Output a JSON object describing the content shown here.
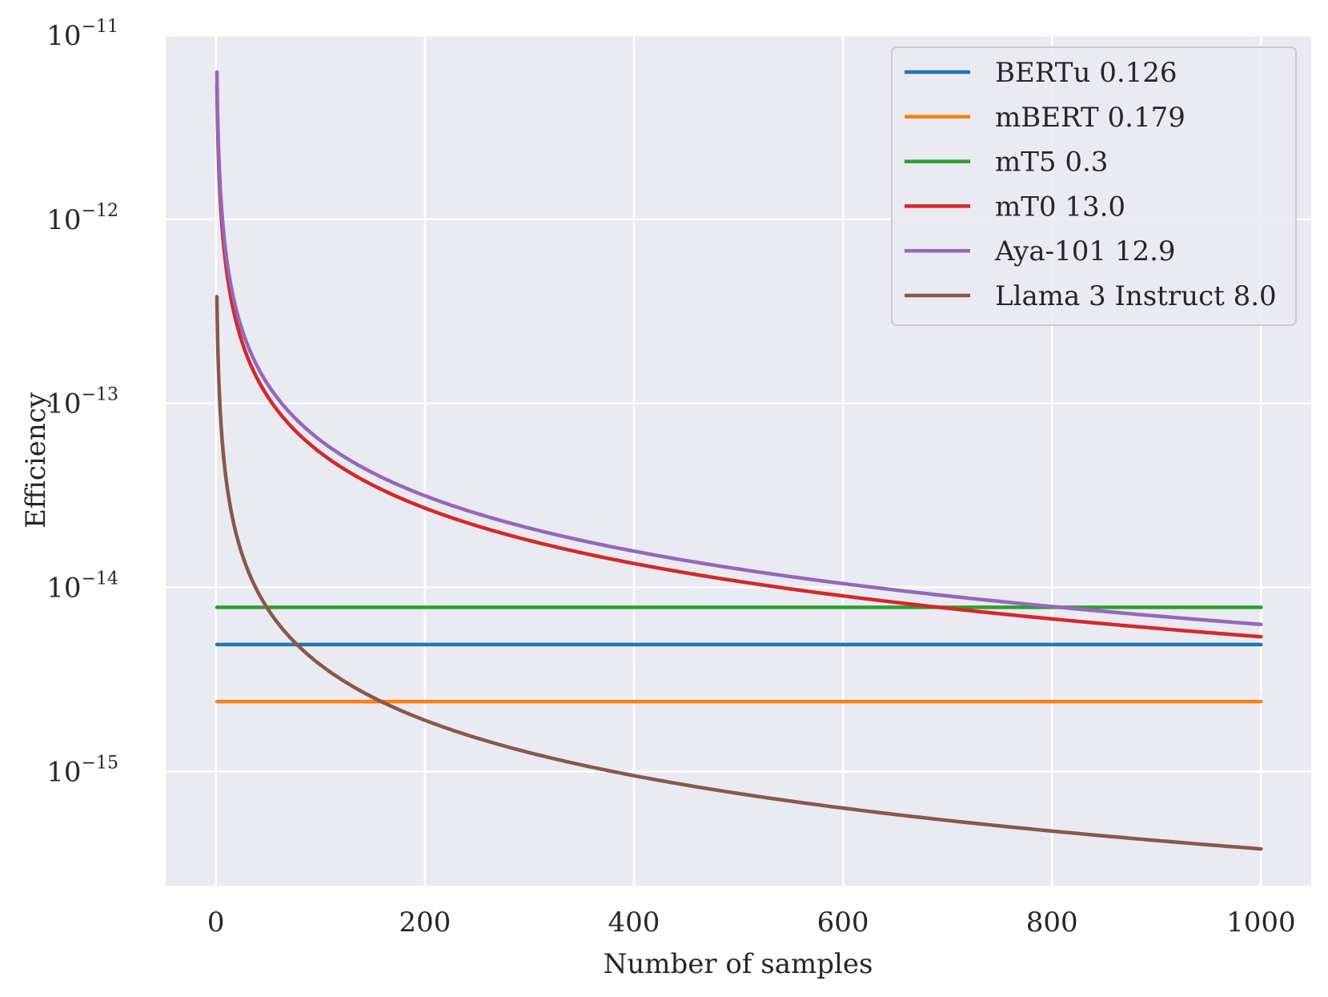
{
  "chart_data": {
    "type": "line",
    "title": "",
    "xlabel": "Number of samples",
    "ylabel": "Efficiency",
    "yscale": "log",
    "xlim": [
      -48,
      1048
    ],
    "ylim_log10": [
      -15.62,
      -11.0
    ],
    "x_ticks": [
      0,
      200,
      400,
      600,
      800,
      1000
    ],
    "x_tick_labels": [
      "0",
      "200",
      "400",
      "600",
      "800",
      "1000"
    ],
    "y_ticks_log10": [
      -11,
      -12,
      -13,
      -14,
      -15
    ],
    "y_tick_labels": [
      {
        "base": "10",
        "exp": "−11"
      },
      {
        "base": "10",
        "exp": "−12"
      },
      {
        "base": "10",
        "exp": "−13"
      },
      {
        "base": "10",
        "exp": "−14"
      },
      {
        "base": "10",
        "exp": "−15"
      }
    ],
    "grid": true,
    "legend_position": "top-right",
    "x_range": [
      1,
      1000
    ],
    "series": [
      {
        "name": "BERTu 0.126",
        "color": "#1f77b4",
        "kind": "constant",
        "value": 4.9e-15
      },
      {
        "name": "mBERT 0.179",
        "color": "#ff7f0e",
        "kind": "constant",
        "value": 2.4e-15
      },
      {
        "name": "mT5 0.3",
        "color": "#2ca02c",
        "kind": "constant",
        "value": 7.8e-15
      },
      {
        "name": "mT0 13.0",
        "color": "#d62728",
        "kind": "inverse",
        "coef": 5.4e-12
      },
      {
        "name": "Aya-101 12.9",
        "color": "#9467bd",
        "kind": "inverse",
        "coef": 6.3e-12
      },
      {
        "name": "Llama 3 Instruct 8.0",
        "color": "#8c564b",
        "kind": "inverse",
        "coef": 3.8e-13
      }
    ]
  }
}
